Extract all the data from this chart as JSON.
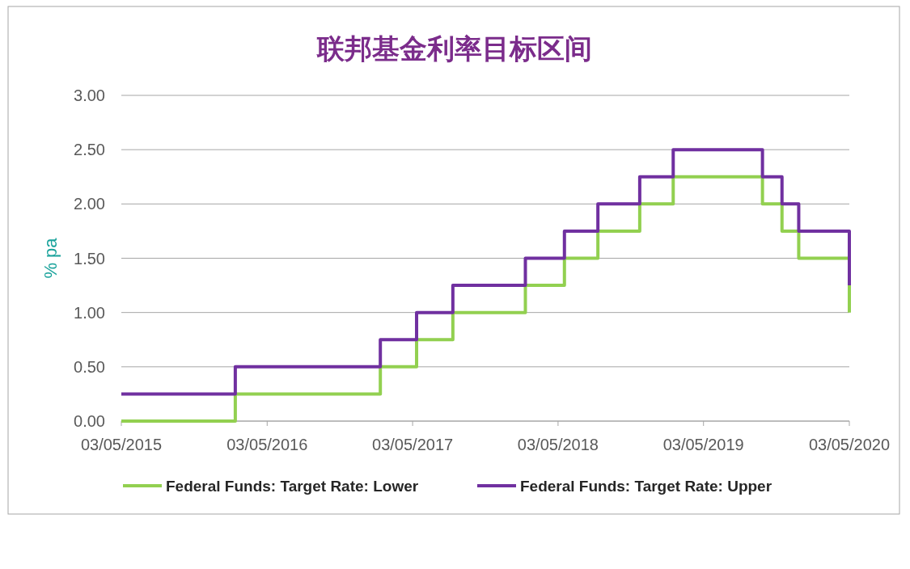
{
  "chart_data": {
    "type": "step",
    "title": "联邦基金利率目标区间",
    "ylabel": "% pa",
    "x": [
      "2015-03-05",
      "2015-12-16",
      "2016-12-14",
      "2017-03-15",
      "2017-06-14",
      "2017-12-13",
      "2018-03-21",
      "2018-06-13",
      "2018-09-26",
      "2018-12-19",
      "2019-07-31",
      "2019-09-18",
      "2019-10-30",
      "2020-03-05"
    ],
    "series": [
      {
        "name": "Federal Funds: Target Rate: Lower",
        "color": "#92d050",
        "values": [
          0,
          0.25,
          0.5,
          0.75,
          1.0,
          1.25,
          1.5,
          1.75,
          2.0,
          2.25,
          2.0,
          1.75,
          1.5,
          1.0
        ]
      },
      {
        "name": "Federal Funds: Target Rate: Upper",
        "color": "#7030a0",
        "values": [
          0.25,
          0.5,
          0.75,
          1.0,
          1.25,
          1.5,
          1.75,
          2.0,
          2.25,
          2.5,
          2.25,
          2.0,
          1.75,
          1.25
        ]
      }
    ],
    "xlim": [
      "2015-03-05",
      "2020-03-05"
    ],
    "xticks": [
      {
        "value": "2015-03-05",
        "label": "03/05/2015"
      },
      {
        "value": "2016-03-05",
        "label": "03/05/2016"
      },
      {
        "value": "2017-03-05",
        "label": "03/05/2017"
      },
      {
        "value": "2018-03-05",
        "label": "03/05/2018"
      },
      {
        "value": "2019-03-05",
        "label": "03/05/2019"
      },
      {
        "value": "2020-03-05",
        "label": "03/05/2020"
      }
    ],
    "ylim": [
      0,
      3
    ],
    "yticks": [
      {
        "value": 0,
        "label": "0.00"
      },
      {
        "value": 0.5,
        "label": "0.50"
      },
      {
        "value": 1,
        "label": "1.00"
      },
      {
        "value": 1.5,
        "label": "1.50"
      },
      {
        "value": 2,
        "label": "2.00"
      },
      {
        "value": 2.5,
        "label": "2.50"
      },
      {
        "value": 3,
        "label": "3.00"
      }
    ],
    "grid": "y",
    "legend": "bottom"
  }
}
